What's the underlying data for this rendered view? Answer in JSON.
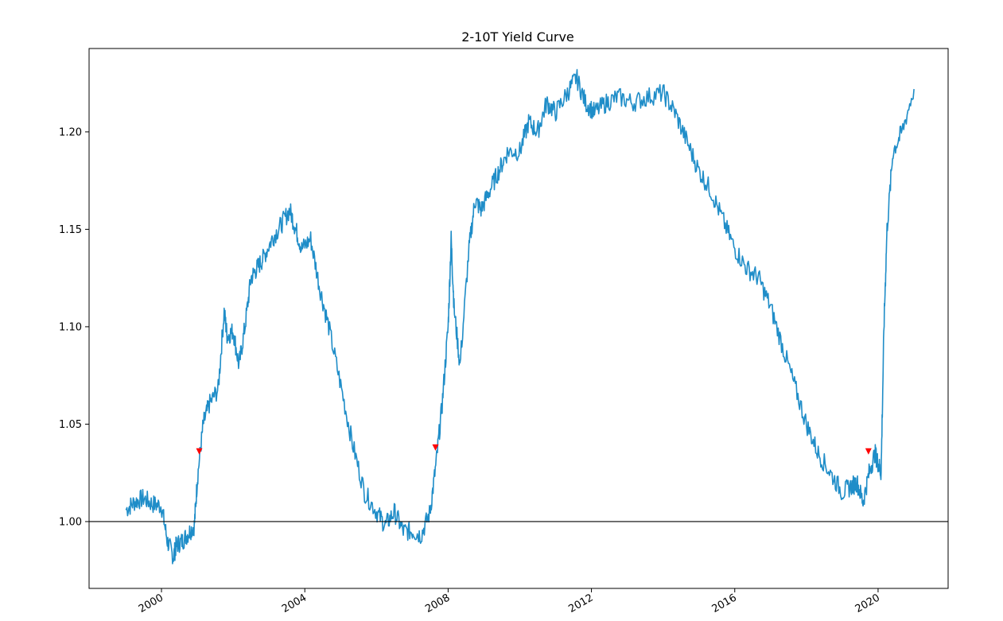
{
  "chart_data": {
    "type": "line",
    "title": "2-10T Yield Curve",
    "xlabel": "",
    "ylabel": "",
    "xlim": [
      "1997-12-24",
      "2021-12-15"
    ],
    "ylim": [
      0.9657,
      1.2428
    ],
    "x_ticks": [
      "2000",
      "2004",
      "2008",
      "2012",
      "2016",
      "2020"
    ],
    "y_ticks": [
      "1.00",
      "1.05",
      "1.10",
      "1.15",
      "1.20"
    ],
    "reference_line": {
      "y": 1.0,
      "color": "#000000"
    },
    "grid": false,
    "colors": {
      "line": "#1f8dc8",
      "marker": "#ff0000"
    },
    "series": [
      {
        "x": [
          "1999-01-01",
          "1999-04-01",
          "1999-07-01",
          "1999-10-01",
          "2000-01-01",
          "2000-03-01",
          "2000-05-01",
          "2000-06-01",
          "2000-08-01",
          "2000-10-01",
          "2000-12-01",
          "2001-01-01",
          "2001-03-01",
          "2001-05-01",
          "2001-08-01",
          "2001-10-01",
          "2001-11-01",
          "2002-01-01",
          "2002-03-01",
          "2002-05-01",
          "2002-07-01",
          "2002-09-01",
          "2002-11-01",
          "2003-02-01",
          "2003-05-01",
          "2003-08-01",
          "2003-10-01",
          "2003-12-01",
          "2004-03-01",
          "2004-06-01",
          "2004-09-01",
          "2005-01-01",
          "2005-05-01",
          "2005-09-01",
          "2006-01-01",
          "2006-04-01",
          "2006-07-01",
          "2006-10-01",
          "2007-01-01",
          "2007-04-01",
          "2007-07-01",
          "2007-09-01",
          "2007-11-01",
          "2008-01-01",
          "2008-02-01",
          "2008-03-01",
          "2008-05-01",
          "2008-08-01",
          "2008-10-01",
          "2008-12-01",
          "2009-03-01",
          "2009-06-01",
          "2009-09-01",
          "2010-01-01",
          "2010-04-01",
          "2010-07-01",
          "2010-10-01",
          "2011-01-01",
          "2011-05-01",
          "2011-08-01",
          "2011-11-01",
          "2012-02-01",
          "2012-06-01",
          "2012-10-01",
          "2013-03-01",
          "2013-08-01",
          "2014-01-01",
          "2014-05-01",
          "2014-09-01",
          "2015-01-01",
          "2015-05-01",
          "2015-09-01",
          "2016-01-01",
          "2016-05-01",
          "2016-09-01",
          "2017-01-01",
          "2017-05-01",
          "2017-09-01",
          "2018-01-01",
          "2018-05-01",
          "2018-09-01",
          "2019-01-01",
          "2019-04-01",
          "2019-06-01",
          "2019-08-01",
          "2019-10-01",
          "2019-12-01",
          "2020-01-01",
          "2020-02-01",
          "2020-03-01",
          "2020-04-01",
          "2020-06-01",
          "2020-09-01",
          "2021-01-01"
        ],
        "y": [
          1.006,
          1.01,
          1.012,
          1.009,
          1.008,
          0.99,
          0.982,
          0.988,
          0.99,
          0.994,
          0.998,
          1.022,
          1.05,
          1.06,
          1.068,
          1.108,
          1.095,
          1.098,
          1.08,
          1.1,
          1.125,
          1.13,
          1.135,
          1.145,
          1.152,
          1.16,
          1.15,
          1.14,
          1.145,
          1.12,
          1.1,
          1.07,
          1.04,
          1.015,
          1.005,
          0.998,
          1.005,
          0.995,
          0.995,
          0.993,
          1.005,
          1.03,
          1.06,
          1.1,
          1.145,
          1.11,
          1.08,
          1.14,
          1.165,
          1.16,
          1.17,
          1.18,
          1.19,
          1.19,
          1.205,
          1.2,
          1.215,
          1.21,
          1.22,
          1.228,
          1.215,
          1.21,
          1.215,
          1.218,
          1.215,
          1.218,
          1.22,
          1.21,
          1.195,
          1.18,
          1.17,
          1.155,
          1.14,
          1.13,
          1.125,
          1.11,
          1.09,
          1.07,
          1.05,
          1.035,
          1.025,
          1.015,
          1.018,
          1.02,
          1.01,
          1.025,
          1.035,
          1.03,
          1.025,
          1.1,
          1.15,
          1.19,
          1.2,
          1.222
        ]
      }
    ],
    "markers": [
      {
        "x": "2001-01-20",
        "y": 1.036
      },
      {
        "x": "2007-08-25",
        "y": 1.038
      },
      {
        "x": "2019-09-25",
        "y": 1.036
      }
    ]
  }
}
